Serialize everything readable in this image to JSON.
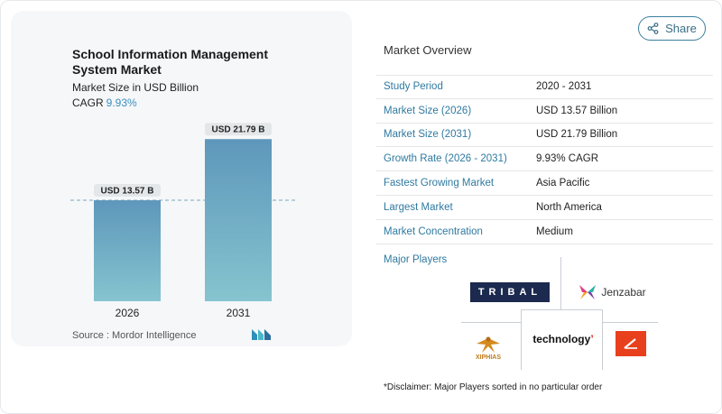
{
  "share": {
    "label": "Share",
    "icon": "share-icon"
  },
  "chart": {
    "title": "School Information Management System Market",
    "subtitle": "Market Size in USD Billion",
    "cagr_label": "CAGR",
    "cagr_value": "9.93%",
    "source_label": "Source :",
    "source_name": "Mordor Intelligence"
  },
  "chart_data": {
    "type": "bar",
    "title": "School Information Management System Market",
    "subtitle": "Market Size in USD Billion",
    "categories": [
      "2026",
      "2031"
    ],
    "values": [
      13.57,
      21.79
    ],
    "data_labels": [
      "USD 13.57 B",
      "USD 21.79 B"
    ],
    "ylim": [
      0,
      24
    ],
    "grid": false,
    "reference_line": 13.57,
    "bar_color_top": "#5e97bb",
    "bar_color_bottom": "#86c4cf"
  },
  "overview": {
    "title": "Market Overview",
    "rows": [
      {
        "label": "Study Period",
        "value": "2020 - 2031"
      },
      {
        "label": "Market Size (2026)",
        "value": "USD 13.57 Billion"
      },
      {
        "label": "Market Size (2031)",
        "value": "USD 21.79 Billion"
      },
      {
        "label": "Growth Rate (2026 - 2031)",
        "value": "9.93% CAGR"
      },
      {
        "label": "Fastest Growing Market",
        "value": "Asia Pacific"
      },
      {
        "label": "Largest Market",
        "value": "North America"
      },
      {
        "label": "Market Concentration",
        "value": "Medium"
      }
    ]
  },
  "players": {
    "title": "Major Players",
    "tribal": "TRIBAL",
    "jenzabar": "Jenzabar",
    "technology": "technology",
    "xiphias": "XIPHIAS"
  },
  "disclaimer": "*Disclaimer: Major Players sorted in no particular order",
  "colors": {
    "accent": "#2f7aa0",
    "label_blue": "#3a8fbf"
  }
}
